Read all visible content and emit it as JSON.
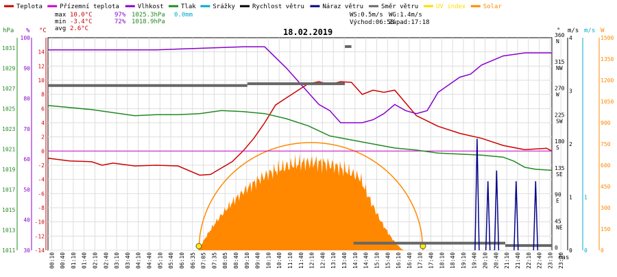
{
  "legend": [
    {
      "label": "Teplota",
      "color": "#cc0000"
    },
    {
      "label": "Přízemní teplota",
      "color": "#cc00cc"
    },
    {
      "label": "Vlhkost",
      "color": "#8800cc"
    },
    {
      "label": "Tlak",
      "color": "#228822"
    },
    {
      "label": "Srážky",
      "color": "#00aacc"
    },
    {
      "label": "Rychlost větru",
      "color": "#000000"
    },
    {
      "label": "Náraz větru",
      "color": "#000088"
    },
    {
      "label": "Směr větru",
      "color": "#666666"
    },
    {
      "label": "UV index",
      "color": "#ffdd00"
    },
    {
      "label": "Solar",
      "color": "#ff8800"
    }
  ],
  "stats": {
    "max_label": "max",
    "max_temp": "10.0°C",
    "max_hum": "97%",
    "max_press": "1025.3hPa",
    "rain": "0.0mm",
    "min_label": "min",
    "min_temp": "-3.4°C",
    "min_hum": "72%",
    "min_press": "1018.9hPa",
    "avg_label": "avg",
    "avg_temp": "2.6°C",
    "ws": "WS:0.5m/s",
    "wg": "WG:1.4m/s",
    "sunrise": "Východ:06:58",
    "sunset": "Západ:17:18"
  },
  "date": "18.02.2019",
  "axis_units": {
    "hpa": "hPa",
    "pct": "%",
    "temp": "°C",
    "dir": "°",
    "ms": "m/s",
    "ms2": "m/s",
    "w": "W",
    "time": "čas"
  },
  "chart_data": {
    "type": "line",
    "x_ticks": [
      "00:10",
      "00:40",
      "01:10",
      "01:40",
      "02:10",
      "02:40",
      "03:10",
      "03:40",
      "04:10",
      "04:40",
      "05:10",
      "05:40",
      "06:10",
      "06:35",
      "07:05",
      "07:35",
      "08:05",
      "08:40",
      "09:10",
      "09:40",
      "10:10",
      "10:40",
      "11:10",
      "11:40",
      "12:10",
      "12:40",
      "13:10",
      "13:40",
      "14:10",
      "14:40",
      "15:10",
      "15:40",
      "16:10",
      "16:40",
      "17:10",
      "17:40",
      "18:10",
      "18:40",
      "19:10",
      "19:40",
      "20:10",
      "20:40",
      "21:10",
      "21:40",
      "22:10",
      "22:40",
      "23:10",
      "23:40"
    ],
    "axes": {
      "temp": {
        "label": "°C",
        "range": [
          -14,
          16
        ],
        "ticks": [
          -14,
          -12,
          -10,
          -8,
          -6,
          -4,
          -2,
          0,
          2,
          4,
          6,
          8,
          10,
          12,
          14
        ]
      },
      "humidity": {
        "label": "%",
        "range": [
          30,
          100
        ],
        "ticks": [
          30,
          40,
          50,
          60,
          70,
          80,
          90,
          100
        ]
      },
      "pressure": {
        "label": "hPa",
        "range": [
          1011,
          1032
        ],
        "ticks": [
          1011,
          1013,
          1015,
          1017,
          1019,
          1021,
          1023,
          1025,
          1027,
          1029,
          1031
        ]
      },
      "direction": {
        "label": "°",
        "ticks": [
          {
            "v": 0,
            "t": "0",
            "d": ""
          },
          {
            "v": 45,
            "t": "45",
            "d": "NE"
          },
          {
            "v": 90,
            "t": "90",
            "d": "E"
          },
          {
            "v": 135,
            "t": "135",
            "d": "SE"
          },
          {
            "v": 180,
            "t": "180",
            "d": "S"
          },
          {
            "v": 225,
            "t": "225",
            "d": "SW"
          },
          {
            "v": 270,
            "t": "270",
            "d": "W"
          },
          {
            "v": 315,
            "t": "315",
            "d": "NW"
          },
          {
            "v": 360,
            "t": "360",
            "d": "N"
          }
        ]
      },
      "wind": {
        "label": "m/s",
        "range": [
          0,
          4
        ],
        "ticks": [
          0,
          1,
          2,
          3,
          4
        ]
      },
      "wind2": {
        "label": "m/s",
        "range": [
          0,
          1
        ],
        "ticks": [
          0,
          1
        ]
      },
      "solar": {
        "label": "W",
        "range": [
          0,
          1500
        ],
        "ticks": [
          0,
          150,
          300,
          450,
          600,
          750,
          900,
          1050,
          1200,
          1350,
          1500
        ]
      }
    },
    "series": [
      {
        "name": "Teplota",
        "axis": "temp",
        "color": "#cc0000",
        "width": 1.5,
        "points": [
          [
            0,
            -1
          ],
          [
            1,
            -1.4
          ],
          [
            2,
            -1.5
          ],
          [
            2.5,
            -2
          ],
          [
            3,
            -1.7
          ],
          [
            4,
            -2.1
          ],
          [
            5,
            -2
          ],
          [
            6,
            -2.1
          ],
          [
            7,
            -3.4
          ],
          [
            7.5,
            -3.3
          ],
          [
            8.5,
            -1.5
          ],
          [
            9,
            0
          ],
          [
            9.5,
            1.8
          ],
          [
            10,
            4
          ],
          [
            10.5,
            6.5
          ],
          [
            11,
            7.5
          ],
          [
            11.5,
            8.5
          ],
          [
            12,
            9.5
          ],
          [
            12.5,
            9.8
          ],
          [
            13,
            9.4
          ],
          [
            13.5,
            9.8
          ],
          [
            14,
            9.7
          ],
          [
            14.5,
            8
          ],
          [
            15,
            8.6
          ],
          [
            15.5,
            8.3
          ],
          [
            16,
            8.6
          ],
          [
            16.5,
            6.8
          ],
          [
            17,
            5
          ],
          [
            18,
            3.5
          ],
          [
            19,
            2.5
          ],
          [
            20,
            1.8
          ],
          [
            21,
            0.8
          ],
          [
            22,
            0.2
          ],
          [
            23,
            0.4
          ],
          [
            23.25,
            0
          ]
        ]
      },
      {
        "name": "Přízemní teplota",
        "axis": "temp",
        "color": "#cc00cc",
        "width": 1,
        "points": [
          [
            0,
            0
          ],
          [
            23.25,
            0
          ]
        ]
      },
      {
        "name": "Vlhkost",
        "axis": "humidity",
        "color": "#8800cc",
        "width": 1.5,
        "points": [
          [
            0,
            96
          ],
          [
            5,
            96
          ],
          [
            9,
            97
          ],
          [
            10,
            97
          ],
          [
            11,
            90
          ],
          [
            12,
            82
          ],
          [
            12.5,
            78
          ],
          [
            13,
            76
          ],
          [
            13.5,
            72
          ],
          [
            14,
            72
          ],
          [
            14.5,
            72
          ],
          [
            15,
            73
          ],
          [
            15.5,
            75
          ],
          [
            16,
            78
          ],
          [
            16.5,
            76
          ],
          [
            17,
            75
          ],
          [
            17.5,
            76
          ],
          [
            18,
            82
          ],
          [
            19,
            87
          ],
          [
            19.5,
            88
          ],
          [
            20,
            91
          ],
          [
            21,
            94
          ],
          [
            22,
            95
          ],
          [
            23.25,
            95
          ]
        ]
      },
      {
        "name": "Tlak",
        "axis": "pressure",
        "color": "#228822",
        "width": 1.5,
        "points": [
          [
            0,
            1025.3
          ],
          [
            2,
            1024.9
          ],
          [
            4,
            1024.3
          ],
          [
            5,
            1024.4
          ],
          [
            6,
            1024.4
          ],
          [
            7,
            1024.5
          ],
          [
            8,
            1024.8
          ],
          [
            9,
            1024.7
          ],
          [
            10,
            1024.5
          ],
          [
            11,
            1024.0
          ],
          [
            12,
            1023.3
          ],
          [
            12.5,
            1022.8
          ],
          [
            13,
            1022.3
          ],
          [
            14,
            1021.9
          ],
          [
            15,
            1021.5
          ],
          [
            16,
            1021.1
          ],
          [
            17,
            1020.9
          ],
          [
            18,
            1020.6
          ],
          [
            19,
            1020.5
          ],
          [
            20,
            1020.4
          ],
          [
            21,
            1020.2
          ],
          [
            21.5,
            1019.8
          ],
          [
            22,
            1019.2
          ],
          [
            22.5,
            1019.0
          ],
          [
            23.25,
            1018.9
          ]
        ]
      }
    ],
    "direction_bars": [
      {
        "from": 0,
        "to": 9.2,
        "value": 279
      },
      {
        "from": 9.2,
        "to": 13.7,
        "value": 282
      },
      {
        "from": 13.7,
        "to": 14.0,
        "value": 345
      },
      {
        "from": 14.1,
        "to": 20.4,
        "value": 12
      },
      {
        "from": 20.4,
        "to": 21.1,
        "value": 12
      },
      {
        "from": 21.1,
        "to": 23.25,
        "value": 8
      }
    ],
    "gust_spikes": [
      [
        19.8,
        2.1
      ],
      [
        20.3,
        1.3
      ],
      [
        20.7,
        1.5
      ],
      [
        21.6,
        1.3
      ],
      [
        22.5,
        1.3
      ]
    ],
    "solar_peak": 620,
    "solar_theoretical_peak": 760,
    "sun_markers": [
      6.96,
      17.3
    ]
  }
}
